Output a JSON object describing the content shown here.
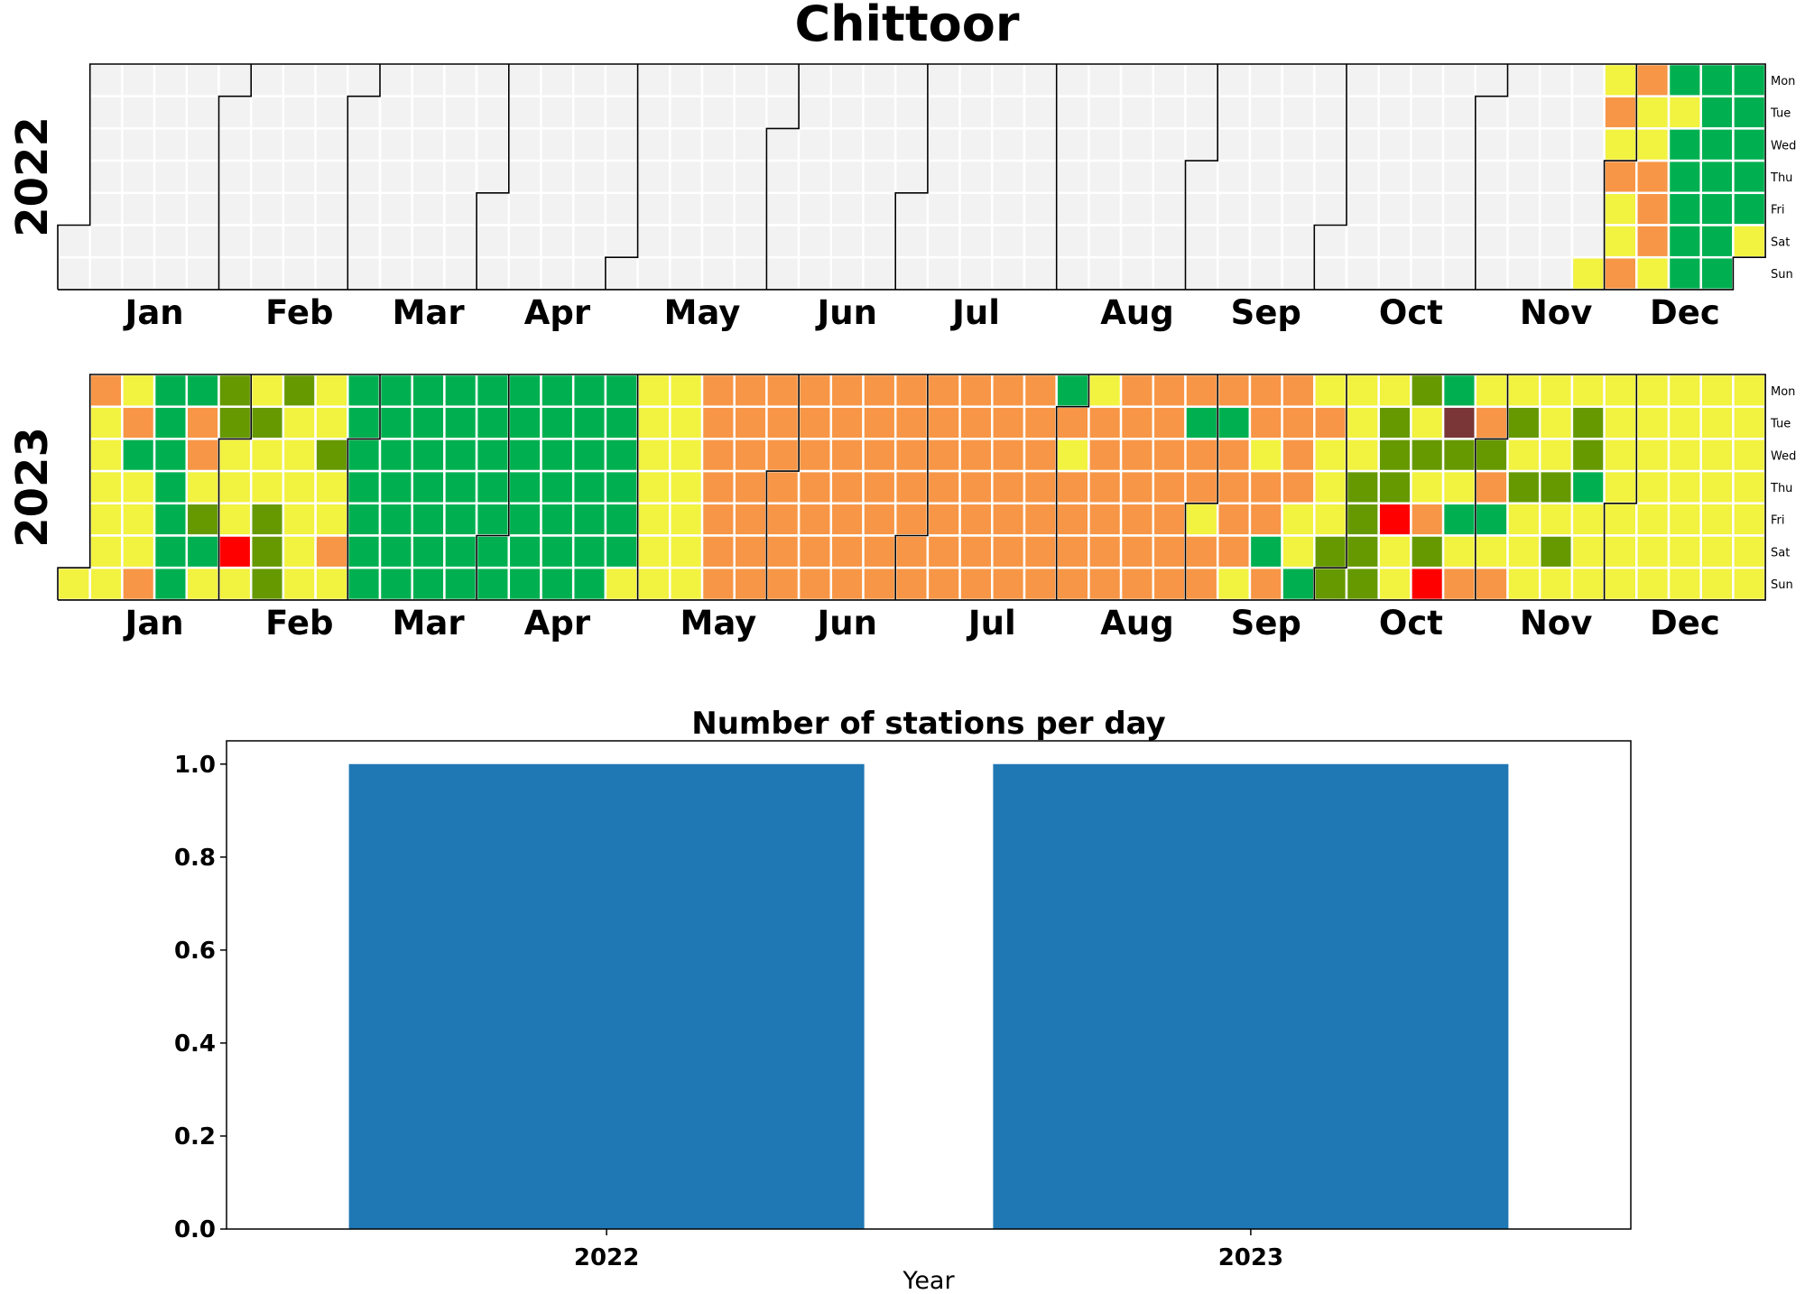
{
  "title": "Chittoor",
  "colors": {
    "background": "#ffffff",
    "empty_cell": "#f2f2f2",
    "cell_gap": "#ffffff",
    "month_border": "#000000",
    "bar": "#1f77b4"
  },
  "calendar": {
    "weekdays": [
      "Mon",
      "Tue",
      "Wed",
      "Thu",
      "Fri",
      "Sat",
      "Sun"
    ],
    "month_labels": [
      "Jan",
      "Feb",
      "Mar",
      "Apr",
      "May",
      "Jun",
      "Jul",
      "Aug",
      "Sep",
      "Oct",
      "Nov",
      "Dec"
    ],
    "legend_palette": {
      "dark_green": "#00b050",
      "olive_green": "#669900",
      "yellow": "#f2f240",
      "orange": "#f79646",
      "red": "#ff0000",
      "maroon": "#7a3636"
    },
    "years": [
      {
        "year": "2022",
        "color_runs": [
          [
            "e",
            330
          ],
          [
            "y",
            1
          ],
          [
            "y",
            1
          ],
          [
            "o",
            1
          ],
          [
            "y",
            1
          ],
          [
            "o",
            1
          ],
          [
            "y",
            1
          ],
          [
            "y",
            1
          ],
          [
            "o",
            1
          ],
          [
            "o",
            1
          ],
          [
            "y",
            1
          ],
          [
            "y",
            1
          ],
          [
            "o",
            1
          ],
          [
            "o",
            1
          ],
          [
            "o",
            1
          ],
          [
            "y",
            1
          ],
          [
            "g",
            1
          ],
          [
            "y",
            1
          ],
          [
            "g",
            2
          ],
          [
            "g",
            1
          ],
          [
            "g",
            1
          ],
          [
            "g",
            13
          ],
          [
            "y",
            1
          ],
          [
            "g",
            1
          ],
          [
            "y",
            1
          ],
          [
            "g",
            4
          ]
        ]
      },
      {
        "year": "2023",
        "color_runs": [
          [
            "y",
            1
          ],
          [
            "o",
            1
          ],
          [
            "y",
            4
          ],
          [
            "y",
            1
          ],
          [
            "y",
            1
          ],
          [
            "y",
            1
          ],
          [
            "o",
            1
          ],
          [
            "g",
            1
          ],
          [
            "y",
            3
          ],
          [
            "o",
            1
          ],
          [
            "g",
            2
          ],
          [
            "g",
            6
          ],
          [
            "o",
            2
          ],
          [
            "y",
            1
          ],
          [
            "O",
            1
          ],
          [
            "g",
            1
          ],
          [
            "y",
            1
          ],
          [
            "O",
            1
          ],
          [
            "O",
            1
          ],
          [
            "y",
            1
          ],
          [
            "y",
            2
          ],
          [
            "r",
            1
          ],
          [
            "y",
            1
          ],
          [
            "y",
            1
          ],
          [
            "O",
            1
          ],
          [
            "y",
            1
          ],
          [
            "y",
            1
          ],
          [
            "O",
            1
          ],
          [
            "O",
            3
          ],
          [
            "y",
            7
          ],
          [
            "y",
            1
          ],
          [
            "O",
            1
          ],
          [
            "y",
            2
          ],
          [
            "o",
            1
          ],
          [
            "y",
            1
          ],
          [
            "g",
            7
          ],
          [
            "g",
            7
          ],
          [
            "g",
            7
          ],
          [
            "g",
            7
          ],
          [
            "g",
            7
          ],
          [
            "g",
            7
          ],
          [
            "g",
            7
          ],
          [
            "g",
            7
          ],
          [
            "g",
            6
          ],
          [
            "y",
            1
          ],
          [
            "y",
            7
          ],
          [
            "y",
            7
          ],
          [
            "o",
            7
          ],
          [
            "o",
            7
          ],
          [
            "o",
            4
          ],
          [
            "o",
            1
          ],
          [
            "o",
            1
          ],
          [
            "o",
            7
          ],
          [
            "o",
            7
          ],
          [
            "o",
            7
          ],
          [
            "o",
            7
          ],
          [
            "o",
            7
          ],
          [
            "o",
            7
          ],
          [
            "o",
            7
          ],
          [
            "o",
            7
          ],
          [
            "o",
            1
          ],
          [
            "g",
            1
          ],
          [
            "o",
            1
          ],
          [
            "y",
            1
          ],
          [
            "o",
            3
          ],
          [
            "o",
            1
          ],
          [
            "y",
            1
          ],
          [
            "o",
            5
          ],
          [
            "o",
            7
          ],
          [
            "o",
            7
          ],
          [
            "o",
            2
          ],
          [
            "g",
            1
          ],
          [
            "o",
            2
          ],
          [
            "y",
            1
          ],
          [
            "o",
            1
          ],
          [
            "o",
            1
          ],
          [
            "o",
            1
          ],
          [
            "g",
            1
          ],
          [
            "o",
            3
          ],
          [
            "o",
            1
          ],
          [
            "y",
            1
          ],
          [
            "o",
            2
          ],
          [
            "y",
            1
          ],
          [
            "o",
            2
          ],
          [
            "g",
            1
          ],
          [
            "o",
            1
          ],
          [
            "o",
            4
          ],
          [
            "y",
            2
          ],
          [
            "g",
            1
          ],
          [
            "y",
            1
          ],
          [
            "o",
            1
          ],
          [
            "y",
            1
          ],
          [
            "y",
            1
          ],
          [
            "y",
            1
          ],
          [
            "O",
            2
          ],
          [
            "y",
            1
          ],
          [
            "y",
            2
          ],
          [
            "O",
            4
          ],
          [
            "y",
            1
          ],
          [
            "O",
            3
          ],
          [
            "r",
            1
          ],
          [
            "y",
            1
          ],
          [
            "y",
            1
          ],
          [
            "O",
            1
          ],
          [
            "y",
            1
          ],
          [
            "O",
            1
          ],
          [
            "y",
            1
          ],
          [
            "o",
            1
          ],
          [
            "O",
            1
          ],
          [
            "r",
            1
          ],
          [
            "g",
            1
          ],
          [
            "m",
            1
          ],
          [
            "O",
            1
          ],
          [
            "y",
            1
          ],
          [
            "g",
            1
          ],
          [
            "y",
            1
          ],
          [
            "o",
            1
          ],
          [
            "y",
            1
          ],
          [
            "o",
            1
          ],
          [
            "O",
            1
          ],
          [
            "o",
            1
          ],
          [
            "g",
            1
          ],
          [
            "y",
            1
          ],
          [
            "o",
            1
          ],
          [
            "y",
            1
          ],
          [
            "O",
            1
          ],
          [
            "y",
            1
          ],
          [
            "O",
            1
          ],
          [
            "y",
            1
          ],
          [
            "y",
            5
          ],
          [
            "O",
            1
          ],
          [
            "y",
            1
          ],
          [
            "O",
            1
          ],
          [
            "y",
            1
          ],
          [
            "y",
            1
          ],
          [
            "O",
            1
          ],
          [
            "O",
            1
          ],
          [
            "g",
            1
          ]
        ]
      }
    ]
  },
  "bar_chart": {
    "title": "Number of stations per day",
    "xlabel": "Year",
    "ylabel": "",
    "ytick_labels": [
      "0.0",
      "0.2",
      "0.4",
      "0.6",
      "0.8",
      "1.0"
    ]
  },
  "chart_data": {
    "type": "bar",
    "title": "Number of stations per day",
    "categories": [
      "2022",
      "2023"
    ],
    "values": [
      1,
      1
    ],
    "xlabel": "Year",
    "ylabel": "",
    "ylim": [
      0,
      1.05
    ],
    "grid": false
  }
}
